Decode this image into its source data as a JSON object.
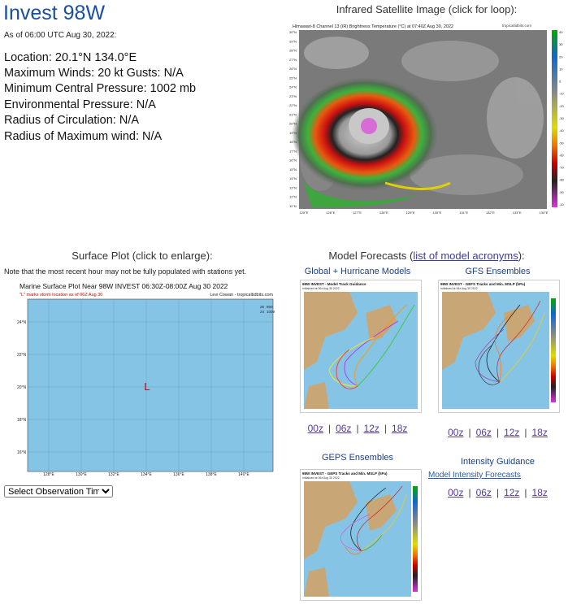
{
  "storm": {
    "title": "Invest 98W",
    "as_of": "As of 06:00 UTC Aug 30, 2022:",
    "location": "Location: 20.1°N 134.0°E",
    "winds": "Maximum Winds: 20 kt  Gusts: N/A",
    "pressure": "Minimum Central Pressure: 1002 mb",
    "env_pressure": "Environmental Pressure: N/A",
    "radius_circ": "Radius of Circulation: N/A",
    "radius_max": "Radius of Maximum wind: N/A"
  },
  "satellite": {
    "heading": "Infrared Satellite Image (click for loop):",
    "caption": "Himawari-8 Channel 13 (IR) Brightness Temperature (°C) at 07:40Z Aug 30, 2022",
    "credit": "tropicaltidbits.com",
    "lat_labels": [
      "30°N",
      "29°N",
      "28°N",
      "27°N",
      "26°N",
      "25°N",
      "24°N",
      "23°N",
      "22°N",
      "21°N",
      "20°N",
      "19°N",
      "18°N",
      "17°N",
      "16°N",
      "15°N",
      "14°N",
      "13°N",
      "12°N",
      "11°N"
    ],
    "lon_labels": [
      "125°E",
      "126°E",
      "127°E",
      "128°E",
      "129°E",
      "130°E",
      "131°E",
      "132°E",
      "133°E",
      "134°E"
    ],
    "colorbar": [
      "40",
      "30",
      "20",
      "10",
      "0",
      "-10",
      "-20",
      "-30",
      "-40",
      "-50",
      "-60",
      "-70",
      "-80",
      "-90",
      "-100"
    ]
  },
  "surface": {
    "heading": "Surface Plot (click to enlarge):",
    "note": "Note that the most recent hour may not be fully populated with stations yet.",
    "plot_title": "Marine Surface Plot Near 98W INVEST 06:30Z-08:00Z Aug 30 2022",
    "plot_sub": "\"L\" marks storm location as of 06Z Aug 30",
    "credit": "Levi Cowan - tropicaltidbits.com",
    "marker": "L",
    "lat_labels": [
      "24°N",
      "22°N",
      "20°N",
      "18°N",
      "16°N"
    ],
    "lon_labels": [
      "128°E",
      "130°E",
      "132°E",
      "134°E",
      "136°E",
      "138°E",
      "140°E"
    ],
    "station": {
      "a": "26",
      "b": "850",
      "c": "24",
      "d": "1009"
    },
    "select_value": "Select Observation Time..."
  },
  "models": {
    "heading_prefix": "Model Forecasts (",
    "heading_link": "list of model acronyms",
    "heading_suffix": "):",
    "global_title": "Global + Hurricane Models",
    "gfs_title": "GFS Ensembles",
    "geps_title": "GEPS Ensembles",
    "intensity_title": "Intensity Guidance",
    "intensity_link": "Model Intensity Forecasts",
    "thumb1_caption": "98W INVEST - Model Track Guidance",
    "thumb1_sub": "Initialized at 06z Aug 30 2022",
    "thumb2_caption": "98W INVEST - GEFS Tracks and Min. MSLP (hPa)",
    "thumb2_sub": "Initialized at 06z Aug 30 2022",
    "thumb3_caption": "98W INVEST - GEPS Tracks and Min. MSLP (hPa)",
    "thumb3_sub": "Initialized at 06z Aug 30 2022",
    "runs": [
      "00z",
      "06z",
      "12z",
      "18z"
    ]
  },
  "colors": {
    "title_blue": "#1a4fa0",
    "link": "#553a9a",
    "ocean": "#86c4e6",
    "land": "#c9a676",
    "storm_marker": "#d40000"
  }
}
